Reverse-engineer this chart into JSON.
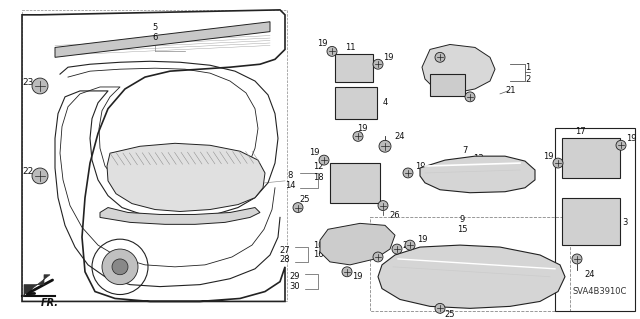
{
  "background_color": "#ffffff",
  "diagram_code": "SVA4B3910C",
  "line_color": "#222222"
}
